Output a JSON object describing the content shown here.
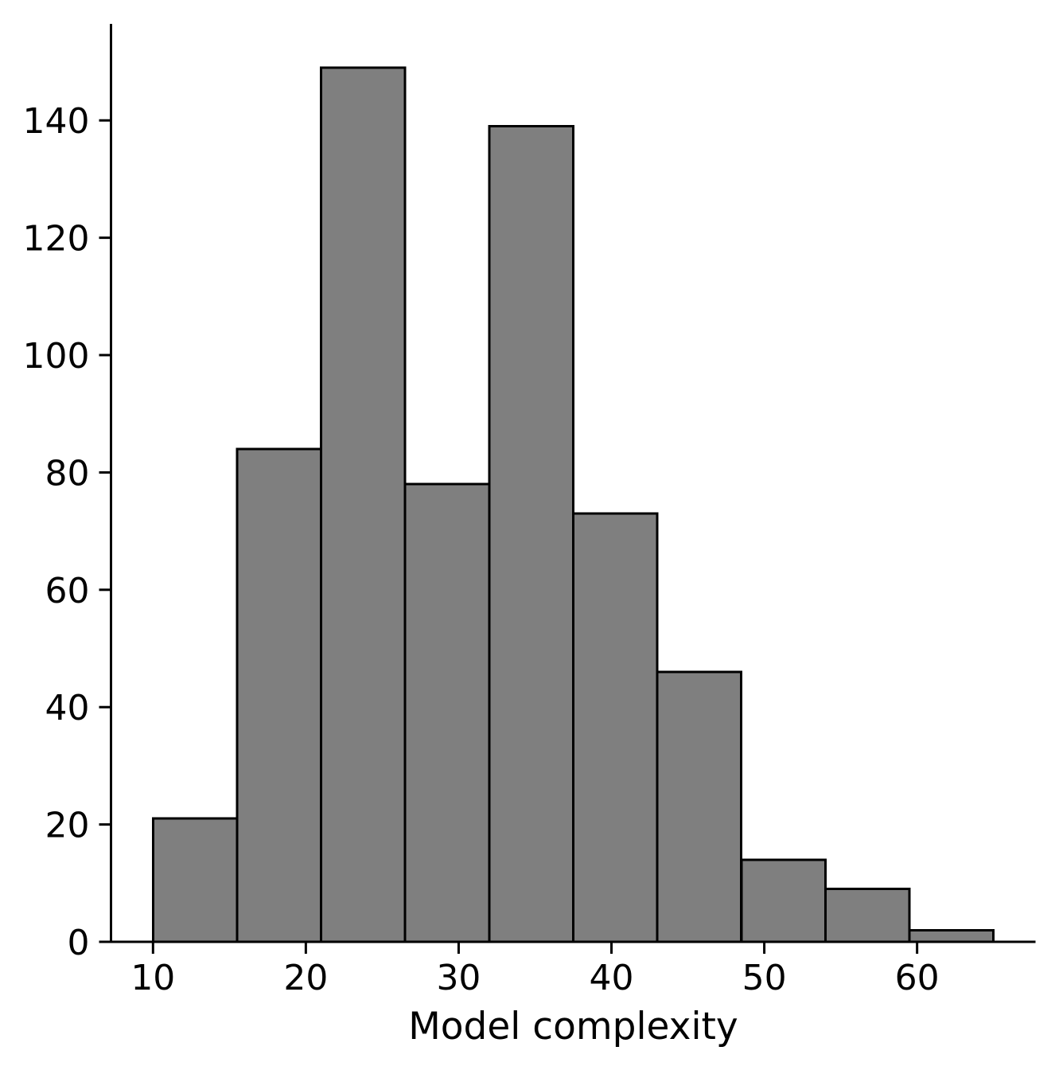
{
  "chart_data": {
    "type": "histogram",
    "title": "",
    "xlabel": "Model complexity",
    "ylabel": "",
    "bin_edges": [
      10,
      15.5,
      21,
      26.5,
      32,
      37.5,
      43,
      48.5,
      54,
      59.5,
      65
    ],
    "counts": [
      21,
      84,
      149,
      78,
      139,
      73,
      46,
      14,
      9,
      2
    ],
    "x_tick_labels": [
      "10",
      "20",
      "30",
      "40",
      "50",
      "60"
    ],
    "x_tick_values": [
      10,
      20,
      30,
      40,
      50,
      60
    ],
    "y_tick_labels": [
      "0",
      "20",
      "40",
      "60",
      "80",
      "100",
      "120",
      "140"
    ],
    "y_tick_values": [
      0,
      20,
      40,
      60,
      80,
      100,
      120,
      140
    ],
    "xlim": [
      7.25,
      67.75
    ],
    "ylim": [
      0,
      156.45
    ],
    "grid": false,
    "legend_position": "none",
    "colors": {
      "bar_fill": "#7f7f7f",
      "bar_edge": "#000000",
      "axis": "#000000",
      "text": "#000000",
      "background": "#ffffff"
    }
  }
}
